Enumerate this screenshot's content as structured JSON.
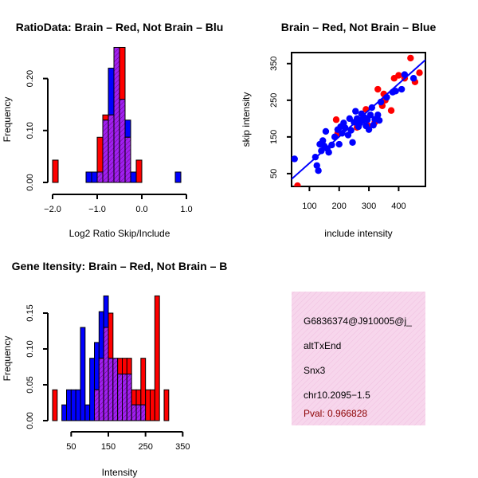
{
  "colors": {
    "red": "#ff0000",
    "blue": "#0000ff",
    "purple": "#a020f0",
    "panel": "#f5cfe8"
  },
  "chart_data": [
    {
      "id": "ratio_hist",
      "type": "bar",
      "title": "RatioData: Brain – Red, Not Brain – Blu",
      "xlabel": "Log2 Ratio Skip/Include",
      "ylabel": "Frequency",
      "xlim": [
        -2.0,
        1.0
      ],
      "ylim": [
        0,
        0.25
      ],
      "xticks": [
        -2.0,
        -1.0,
        0.0,
        1.0
      ],
      "xticklabels": [
        "−2.0",
        "−1.0",
        "0.0",
        "1.0"
      ],
      "yticks": [
        0.0,
        0.1,
        0.2
      ],
      "yticklabels": [
        "0.00",
        "0.10",
        "0.20"
      ],
      "bin_width": 0.125,
      "bin_start": -2.0,
      "series": [
        {
          "name": "Brain",
          "color": "red",
          "values": [
            0.043,
            0,
            0,
            0,
            0,
            0,
            0,
            0,
            0.087,
            0.13,
            0.13,
            0.26,
            0.26,
            0.087,
            0,
            0.043,
            0,
            0,
            0,
            0,
            0,
            0,
            0,
            0
          ]
        },
        {
          "name": "Not Brain",
          "color": "blue",
          "values": [
            0,
            0,
            0,
            0,
            0,
            0,
            0.02,
            0.02,
            0.02,
            0.12,
            0.22,
            0.26,
            0.16,
            0.12,
            0.02,
            0,
            0,
            0,
            0,
            0,
            0,
            0,
            0.02,
            0
          ]
        }
      ]
    },
    {
      "id": "scatter",
      "type": "scatter",
      "title": "Brain – Red, Not Brain – Blue",
      "xlabel": "include intensity",
      "ylabel": "skip intensity",
      "xlim": [
        40,
        490
      ],
      "ylim": [
        15,
        380
      ],
      "xticks": [
        100,
        200,
        300,
        400
      ],
      "xticklabels": [
        "100",
        "200",
        "300",
        "400"
      ],
      "yticks": [
        50,
        150,
        250,
        350
      ],
      "yticklabels": [
        "50",
        "150",
        "250",
        "350"
      ],
      "fit_line": {
        "x": [
          40,
          490
        ],
        "y": [
          35,
          360
        ]
      },
      "series": [
        {
          "name": "Brain",
          "color": "red",
          "points": [
            [
              60,
              17
            ],
            [
              190,
              197
            ],
            [
              195,
              160
            ],
            [
              260,
              176
            ],
            [
              290,
              225
            ],
            [
              295,
              182
            ],
            [
              320,
              190
            ],
            [
              330,
              280
            ],
            [
              345,
              235
            ],
            [
              350,
              267
            ],
            [
              355,
              250
            ],
            [
              375,
              222
            ],
            [
              385,
              310
            ],
            [
              400,
              318
            ],
            [
              420,
              310
            ],
            [
              440,
              365
            ],
            [
              455,
              300
            ],
            [
              470,
              325
            ]
          ]
        },
        {
          "name": "Not Brain",
          "color": "blue",
          "points": [
            [
              50,
              90
            ],
            [
              120,
              95
            ],
            [
              125,
              72
            ],
            [
              130,
              58
            ],
            [
              135,
              130
            ],
            [
              140,
              112
            ],
            [
              145,
              140
            ],
            [
              150,
              125
            ],
            [
              155,
              165
            ],
            [
              160,
              118
            ],
            [
              165,
              108
            ],
            [
              175,
              128
            ],
            [
              185,
              150
            ],
            [
              195,
              170
            ],
            [
              200,
              130
            ],
            [
              205,
              178
            ],
            [
              210,
              160
            ],
            [
              215,
              188
            ],
            [
              220,
              175
            ],
            [
              230,
              155
            ],
            [
              235,
              200
            ],
            [
              240,
              168
            ],
            [
              245,
              135
            ],
            [
              250,
              190
            ],
            [
              255,
              220
            ],
            [
              260,
              200
            ],
            [
              265,
              178
            ],
            [
              270,
              188
            ],
            [
              275,
              213
            ],
            [
              280,
              195
            ],
            [
              285,
              203
            ],
            [
              290,
              180
            ],
            [
              295,
              197
            ],
            [
              300,
              170
            ],
            [
              305,
              210
            ],
            [
              310,
              230
            ],
            [
              315,
              182
            ],
            [
              320,
              198
            ],
            [
              330,
              210
            ],
            [
              335,
              195
            ],
            [
              340,
              245
            ],
            [
              360,
              258
            ],
            [
              380,
              272
            ],
            [
              390,
              275
            ],
            [
              410,
              280
            ],
            [
              420,
              320
            ],
            [
              450,
              310
            ]
          ]
        }
      ]
    },
    {
      "id": "intensity_hist",
      "type": "bar",
      "title": "Gene Itensity: Brain – Red, Not Brain – B",
      "xlabel": "Intensity",
      "ylabel": "Frequency",
      "xlim": [
        0,
        360
      ],
      "ylim": [
        0,
        0.18
      ],
      "xticks": [
        50,
        150,
        250,
        350
      ],
      "xticklabels": [
        "50",
        "150",
        "250",
        "350"
      ],
      "yticks": [
        0.0,
        0.05,
        0.1,
        0.15
      ],
      "yticklabels": [
        "0.00",
        "0.05",
        "0.10",
        "0.15"
      ],
      "bin_width": 12.5,
      "bin_start": 0,
      "series": [
        {
          "name": "Brain",
          "color": "red",
          "values": [
            0.043,
            0,
            0,
            0,
            0,
            0,
            0,
            0,
            0,
            0.043,
            0.087,
            0.13,
            0.15,
            0.087,
            0.087,
            0.087,
            0.087,
            0.043,
            0.043,
            0.087,
            0.043,
            0.043,
            0.174,
            0,
            0.043
          ]
        },
        {
          "name": "Not Brain",
          "color": "blue",
          "values": [
            0,
            0,
            0.022,
            0.043,
            0.043,
            0.043,
            0.13,
            0.022,
            0.087,
            0.109,
            0.152,
            0.174,
            0.087,
            0.087,
            0.065,
            0.065,
            0.065,
            0.022,
            0.022,
            0.022,
            0,
            0,
            0,
            0,
            0
          ]
        }
      ]
    }
  ],
  "info_panel": {
    "probe_id": "G6836374@J910005@j_",
    "event_type": "altTxEnd",
    "gene": "Snx3",
    "location": "chr10.2095−1.5",
    "pval": "Pval: 0.966828"
  }
}
